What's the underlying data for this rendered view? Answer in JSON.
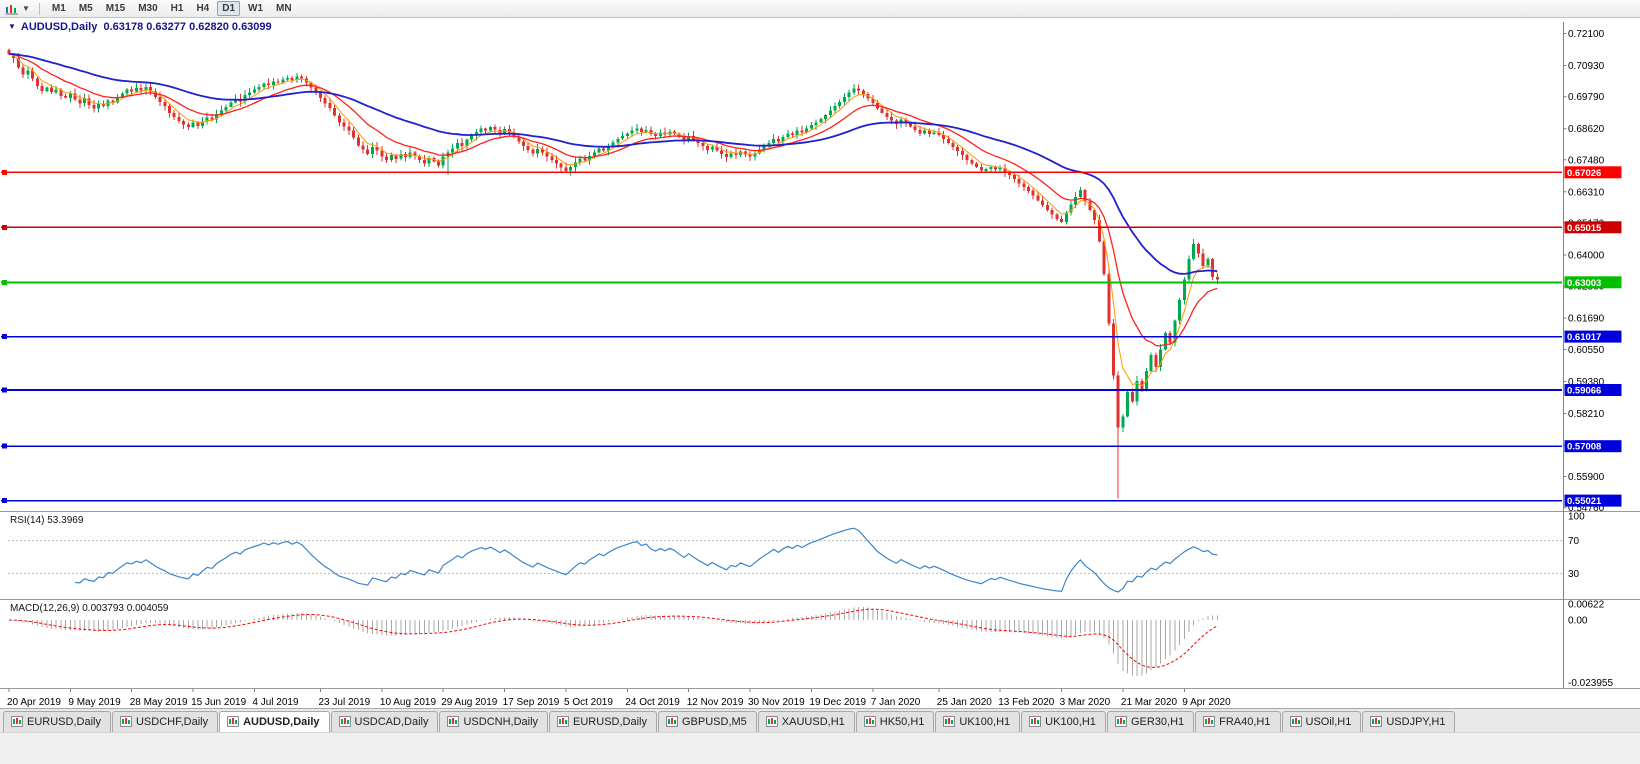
{
  "toolbar": {
    "timeframes": [
      "M1",
      "M5",
      "M15",
      "M30",
      "H1",
      "H4",
      "D1",
      "W1",
      "MN"
    ],
    "active_timeframe": "D1"
  },
  "chart": {
    "symbol": "AUDUSD",
    "period": "Daily",
    "title_line": "AUDUSD,Daily  0.63178 0.63277 0.62820 0.63099"
  },
  "rsi": {
    "label": "RSI(14) 53.3969",
    "value": "53.3969",
    "axis_labels": [
      "100",
      "70",
      "30"
    ],
    "levels": [
      70,
      30
    ]
  },
  "macd": {
    "label": "MACD(12,26,9) 0.003793 0.004059",
    "axis_labels": [
      "0.00622",
      "0.00",
      "-0.023955"
    ]
  },
  "tabs": {
    "items": [
      "EURUSD,Daily",
      "USDCHF,Daily",
      "AUDUSD,Daily",
      "USDCAD,Daily",
      "USDCNH,Daily",
      "EURUSD,Daily",
      "GBPUSD,M5",
      "XAUUSD,H1",
      "HK50,H1",
      "UK100,H1",
      "UK100,H1",
      "GER30,H1",
      "FRA40,H1",
      "USOil,H1",
      "USDJPY,H1"
    ],
    "active_index": 2
  },
  "chart_data": {
    "type": "candlestick",
    "title": "AUDUSD,Daily",
    "ohlc_header": {
      "open": "0.63178",
      "high": "0.63277",
      "low": "0.62820",
      "close": "0.63099"
    },
    "y_axis_ticks": [
      "0.72100",
      "0.70930",
      "0.69790",
      "0.68620",
      "0.67480",
      "0.66310",
      "0.65170",
      "0.64000",
      "0.62860",
      "0.61690",
      "0.60550",
      "0.59380",
      "0.58210",
      "0.57040",
      "0.55900",
      "0.54760"
    ],
    "x_axis_labels": [
      "20 Apr 2019",
      "9 May 2019",
      "28 May 2019",
      "15 Jun 2019",
      "4 Jul 2019",
      "23 Jul 2019",
      "10 Aug 2019",
      "29 Aug 2019",
      "17 Sep 2019",
      "5 Oct 2019",
      "24 Oct 2019",
      "12 Nov 2019",
      "30 Nov 2019",
      "19 Dec 2019",
      "7 Jan 2020",
      "25 Jan 2020",
      "13 Feb 2020",
      "3 Mar 2020",
      "21 Mar 2020",
      "9 Apr 2020"
    ],
    "price_range": [
      0.5464,
      0.7252
    ],
    "horizontal_lines": [
      {
        "label": "0.67026",
        "value": 0.67026,
        "color": "#ff0000",
        "width": 1.4
      },
      {
        "label": "0.65015",
        "value": 0.65015,
        "color": "#cc0000",
        "width": 1.4
      },
      {
        "label": "0.63003",
        "value": 0.63003,
        "color": "#00c000",
        "width": 2
      },
      {
        "label": "0.61017",
        "value": 0.61017,
        "color": "#0000dd",
        "width": 1.6
      },
      {
        "label": "0.59066",
        "value": 0.59066,
        "color": "#0000dd",
        "width": 1.6
      },
      {
        "label": "0.57008",
        "value": 0.57008,
        "color": "#0000dd",
        "width": 1.6
      },
      {
        "label": "0.55021",
        "value": 0.55021,
        "color": "#0000dd",
        "width": 1.6
      }
    ],
    "closes": [
      0.7135,
      0.712,
      0.7085,
      0.706,
      0.7075,
      0.7045,
      0.7018,
      0.7,
      0.7012,
      0.6995,
      0.7005,
      0.6982,
      0.6975,
      0.699,
      0.6968,
      0.6955,
      0.6972,
      0.6948,
      0.6935,
      0.6952,
      0.6945,
      0.6965,
      0.6958,
      0.6975,
      0.699,
      0.7005,
      0.6998,
      0.701,
      0.7002,
      0.7015,
      0.6998,
      0.6978,
      0.696,
      0.6945,
      0.692,
      0.6905,
      0.689,
      0.6878,
      0.6868,
      0.6885,
      0.6872,
      0.6888,
      0.6902,
      0.6895,
      0.6915,
      0.6928,
      0.6942,
      0.6958,
      0.697,
      0.6962,
      0.6985,
      0.6995,
      0.7005,
      0.7015,
      0.7028,
      0.7022,
      0.7035,
      0.703,
      0.7042,
      0.7048,
      0.704,
      0.7052,
      0.7045,
      0.703,
      0.7012,
      0.6995,
      0.6975,
      0.6955,
      0.6938,
      0.691,
      0.6885,
      0.687,
      0.6855,
      0.683,
      0.68,
      0.6785,
      0.677,
      0.6795,
      0.6782,
      0.676,
      0.6748,
      0.6765,
      0.6752,
      0.677,
      0.6758,
      0.6775,
      0.6762,
      0.6748,
      0.6735,
      0.6755,
      0.6742,
      0.6728,
      0.676,
      0.6775,
      0.679,
      0.681,
      0.6798,
      0.6822,
      0.6838,
      0.685,
      0.6862,
      0.6855,
      0.6868,
      0.6858,
      0.6845,
      0.686,
      0.6848,
      0.6832,
      0.6815,
      0.6798,
      0.6785,
      0.6772,
      0.6788,
      0.6775,
      0.676,
      0.6748,
      0.6735,
      0.672,
      0.6708,
      0.6722,
      0.6738,
      0.6752,
      0.6745,
      0.6762,
      0.6775,
      0.679,
      0.6782,
      0.6798,
      0.6812,
      0.6825,
      0.6835,
      0.6845,
      0.6855,
      0.6862,
      0.685,
      0.6858,
      0.6842,
      0.6835,
      0.6848,
      0.684,
      0.6852,
      0.6845,
      0.6832,
      0.682,
      0.6835,
      0.6822,
      0.681,
      0.6798,
      0.6785,
      0.6795,
      0.6782,
      0.677,
      0.6758,
      0.6772,
      0.6765,
      0.6778,
      0.6768,
      0.676,
      0.6772,
      0.6785,
      0.6798,
      0.681,
      0.6825,
      0.6815,
      0.6832,
      0.6845,
      0.6838,
      0.6855,
      0.6848,
      0.6862,
      0.6875,
      0.6885,
      0.6898,
      0.6912,
      0.6928,
      0.6945,
      0.696,
      0.6978,
      0.6995,
      0.7008,
      0.7002,
      0.6988,
      0.6972,
      0.6955,
      0.6935,
      0.692,
      0.6905,
      0.6892,
      0.688,
      0.6895,
      0.6882,
      0.687,
      0.6858,
      0.6845,
      0.6855,
      0.6842,
      0.6848,
      0.6838,
      0.6825,
      0.681,
      0.6795,
      0.678,
      0.6765,
      0.6748,
      0.6735,
      0.6722,
      0.6708,
      0.6715,
      0.6722,
      0.6712,
      0.6718,
      0.6705,
      0.6692,
      0.6678,
      0.6662,
      0.6648,
      0.6635,
      0.6618,
      0.66,
      0.6582,
      0.6565,
      0.6548,
      0.6532,
      0.652,
      0.6555,
      0.6585,
      0.6612,
      0.6638,
      0.6595,
      0.6565,
      0.6528,
      0.645,
      0.633,
      0.615,
      0.596,
      0.577,
      0.581,
      0.59,
      0.5865,
      0.594,
      0.5905,
      0.5975,
      0.6035,
      0.599,
      0.6055,
      0.6115,
      0.608,
      0.616,
      0.6235,
      0.631,
      0.6385,
      0.644,
      0.6405,
      0.636,
      0.6385,
      0.632,
      0.631
    ],
    "low_spikes": [
      {
        "i": 93,
        "low": 0.6692
      },
      {
        "i": 118,
        "low": 0.67
      },
      {
        "i": 235,
        "low": 0.551
      }
    ],
    "indicators": {
      "moving_averages": [
        {
          "period": 5,
          "method": "ema",
          "color": "#ff9900",
          "width": 1
        },
        {
          "period": 14,
          "method": "ema",
          "color": "#ff2020",
          "width": 1.3
        },
        {
          "period": 45,
          "method": "ema",
          "color": "#2020cc",
          "width": 1.8
        }
      ],
      "rsi_period": 14,
      "macd": [
        12,
        26,
        9
      ]
    },
    "colors": {
      "bull": "#00a94f",
      "bear": "#e03030",
      "rsi_line": "#3d85c8",
      "macd_hist": "#a8a8a8",
      "macd_signal": "#ff0000",
      "axis_text": "#000000",
      "separator": "#9a9a9a"
    }
  }
}
